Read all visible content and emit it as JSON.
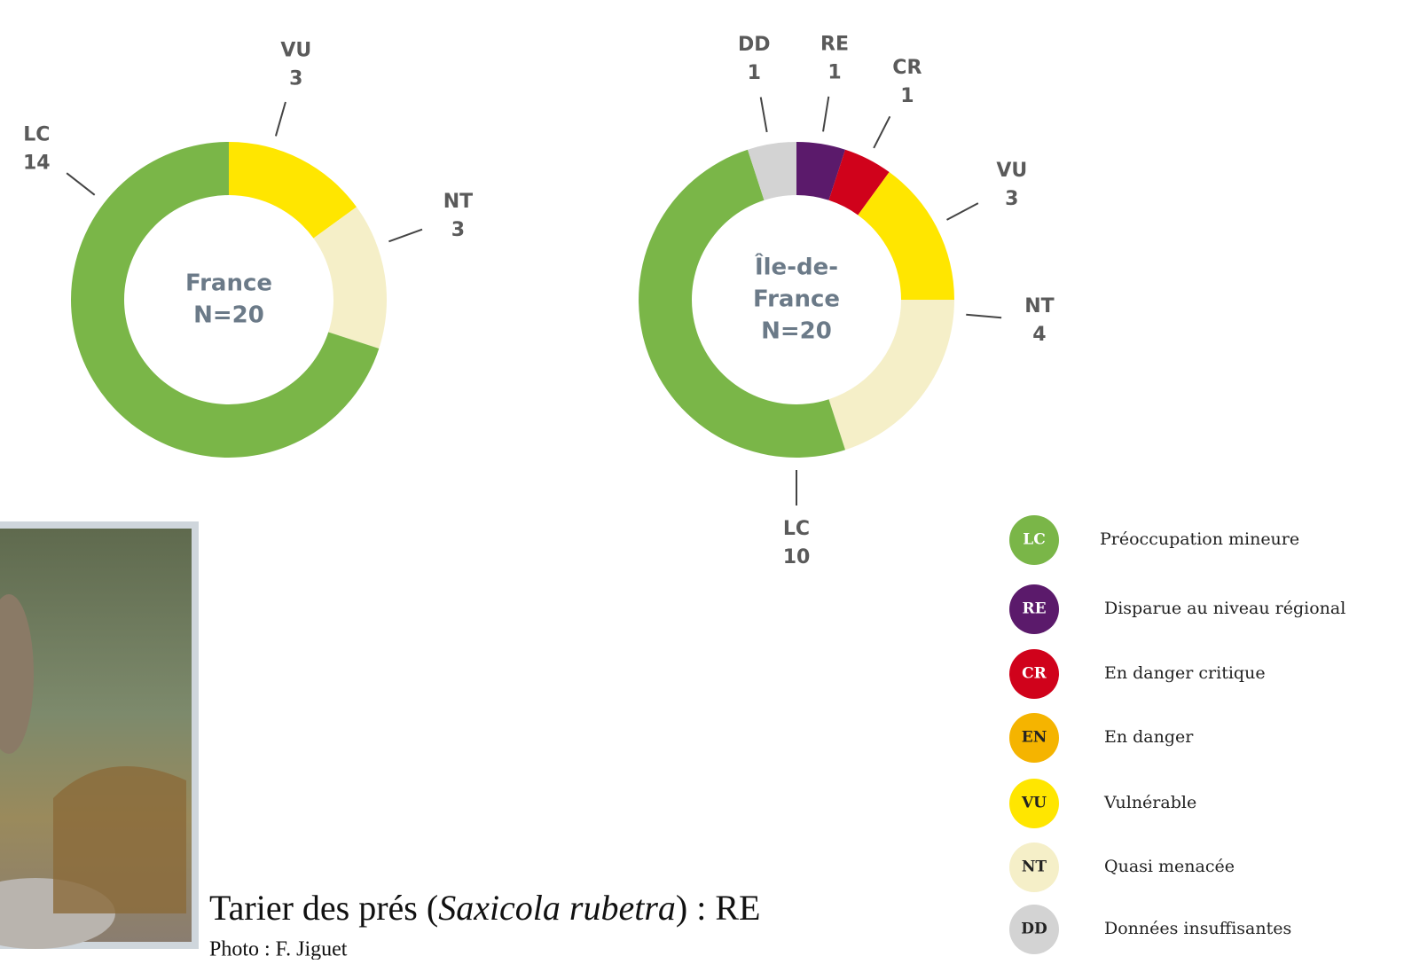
{
  "chart_data": [
    {
      "type": "pie",
      "title": [
        "France",
        "N=20"
      ],
      "categories": [
        "VU",
        "NT",
        "LC"
      ],
      "values": [
        3,
        3,
        14
      ],
      "colors": [
        "#ffe600",
        "#f5efc8",
        "#7ab648"
      ]
    },
    {
      "type": "pie",
      "title": [
        "Île-de-",
        "France",
        "N=20"
      ],
      "categories": [
        "RE",
        "CR",
        "VU",
        "NT",
        "LC",
        "DD"
      ],
      "values": [
        1,
        1,
        3,
        4,
        10,
        1
      ],
      "colors": [
        "#5b1a6b",
        "#d0021b",
        "#ffe600",
        "#f5efc8",
        "#7ab648",
        "#d3d3d3"
      ]
    }
  ],
  "legend": [
    {
      "code": "LC",
      "label": "Préoccupation mineure",
      "color": "#7ab648"
    },
    {
      "code": "RE",
      "label": "Disparue au niveau régional",
      "color": "#5b1a6b"
    },
    {
      "code": "CR",
      "label": "En danger critique",
      "color": "#d0021b"
    },
    {
      "code": "EN",
      "label": "En danger",
      "color": "#f5b400"
    },
    {
      "code": "VU",
      "label": "Vulnérable",
      "color": "#ffe600"
    },
    {
      "code": "NT",
      "label": "Quasi menacée",
      "color": "#f5efc8"
    },
    {
      "code": "DD",
      "label": "Données insuffisantes",
      "color": "#d3d3d3"
    }
  ],
  "caption": {
    "before": "Tarier des prés (",
    "italic": "Saxicola rubetra",
    "after": ") : RE",
    "credit": "Photo : F. Jiguet"
  }
}
